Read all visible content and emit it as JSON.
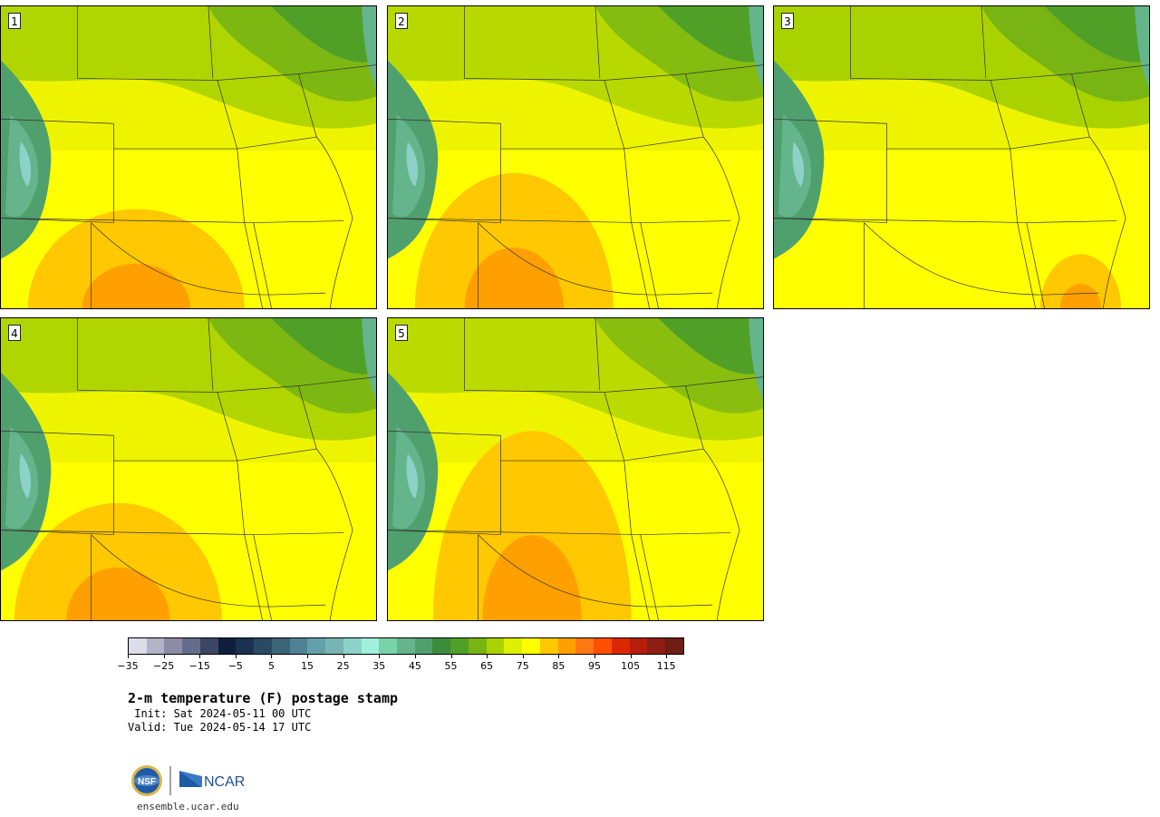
{
  "panels": [
    {
      "label": "1",
      "variant": 1
    },
    {
      "label": "2",
      "variant": 2
    },
    {
      "label": "3",
      "variant": 3
    },
    {
      "label": "4",
      "variant": 4
    },
    {
      "label": "5",
      "variant": 5
    }
  ],
  "colorbar": {
    "colors": [
      "#dcdcea",
      "#b4b4c8",
      "#8c8ca6",
      "#646e8c",
      "#3c4664",
      "#0f1e3c",
      "#1a3250",
      "#2a4a64",
      "#3c6478",
      "#508296",
      "#64a0aa",
      "#78b4b4",
      "#8cd2c8",
      "#a0f0dc",
      "#78d2aa",
      "#64b48c",
      "#50a06e",
      "#3c8c3c",
      "#50a028",
      "#78b414",
      "#aad200",
      "#dcf000",
      "#ffff00",
      "#ffc800",
      "#ffa000",
      "#ff7814",
      "#ff5000",
      "#dc2800",
      "#b41e0a",
      "#8c1e14",
      "#6e1e14"
    ],
    "tick_values": [
      "−35",
      "−25",
      "−15",
      "−5",
      "5",
      "15",
      "25",
      "35",
      "45",
      "55",
      "65",
      "75",
      "85",
      "95",
      "105",
      "115"
    ]
  },
  "title": "2-m temperature (F) postage stamp",
  "init": " Init: Sat 2024-05-11 00 UTC",
  "valid": "Valid: Tue 2024-05-14 17 UTC",
  "logo": {
    "nsf": "NSF",
    "ncar": "NCAR"
  },
  "site": "ensemble.ucar.edu"
}
